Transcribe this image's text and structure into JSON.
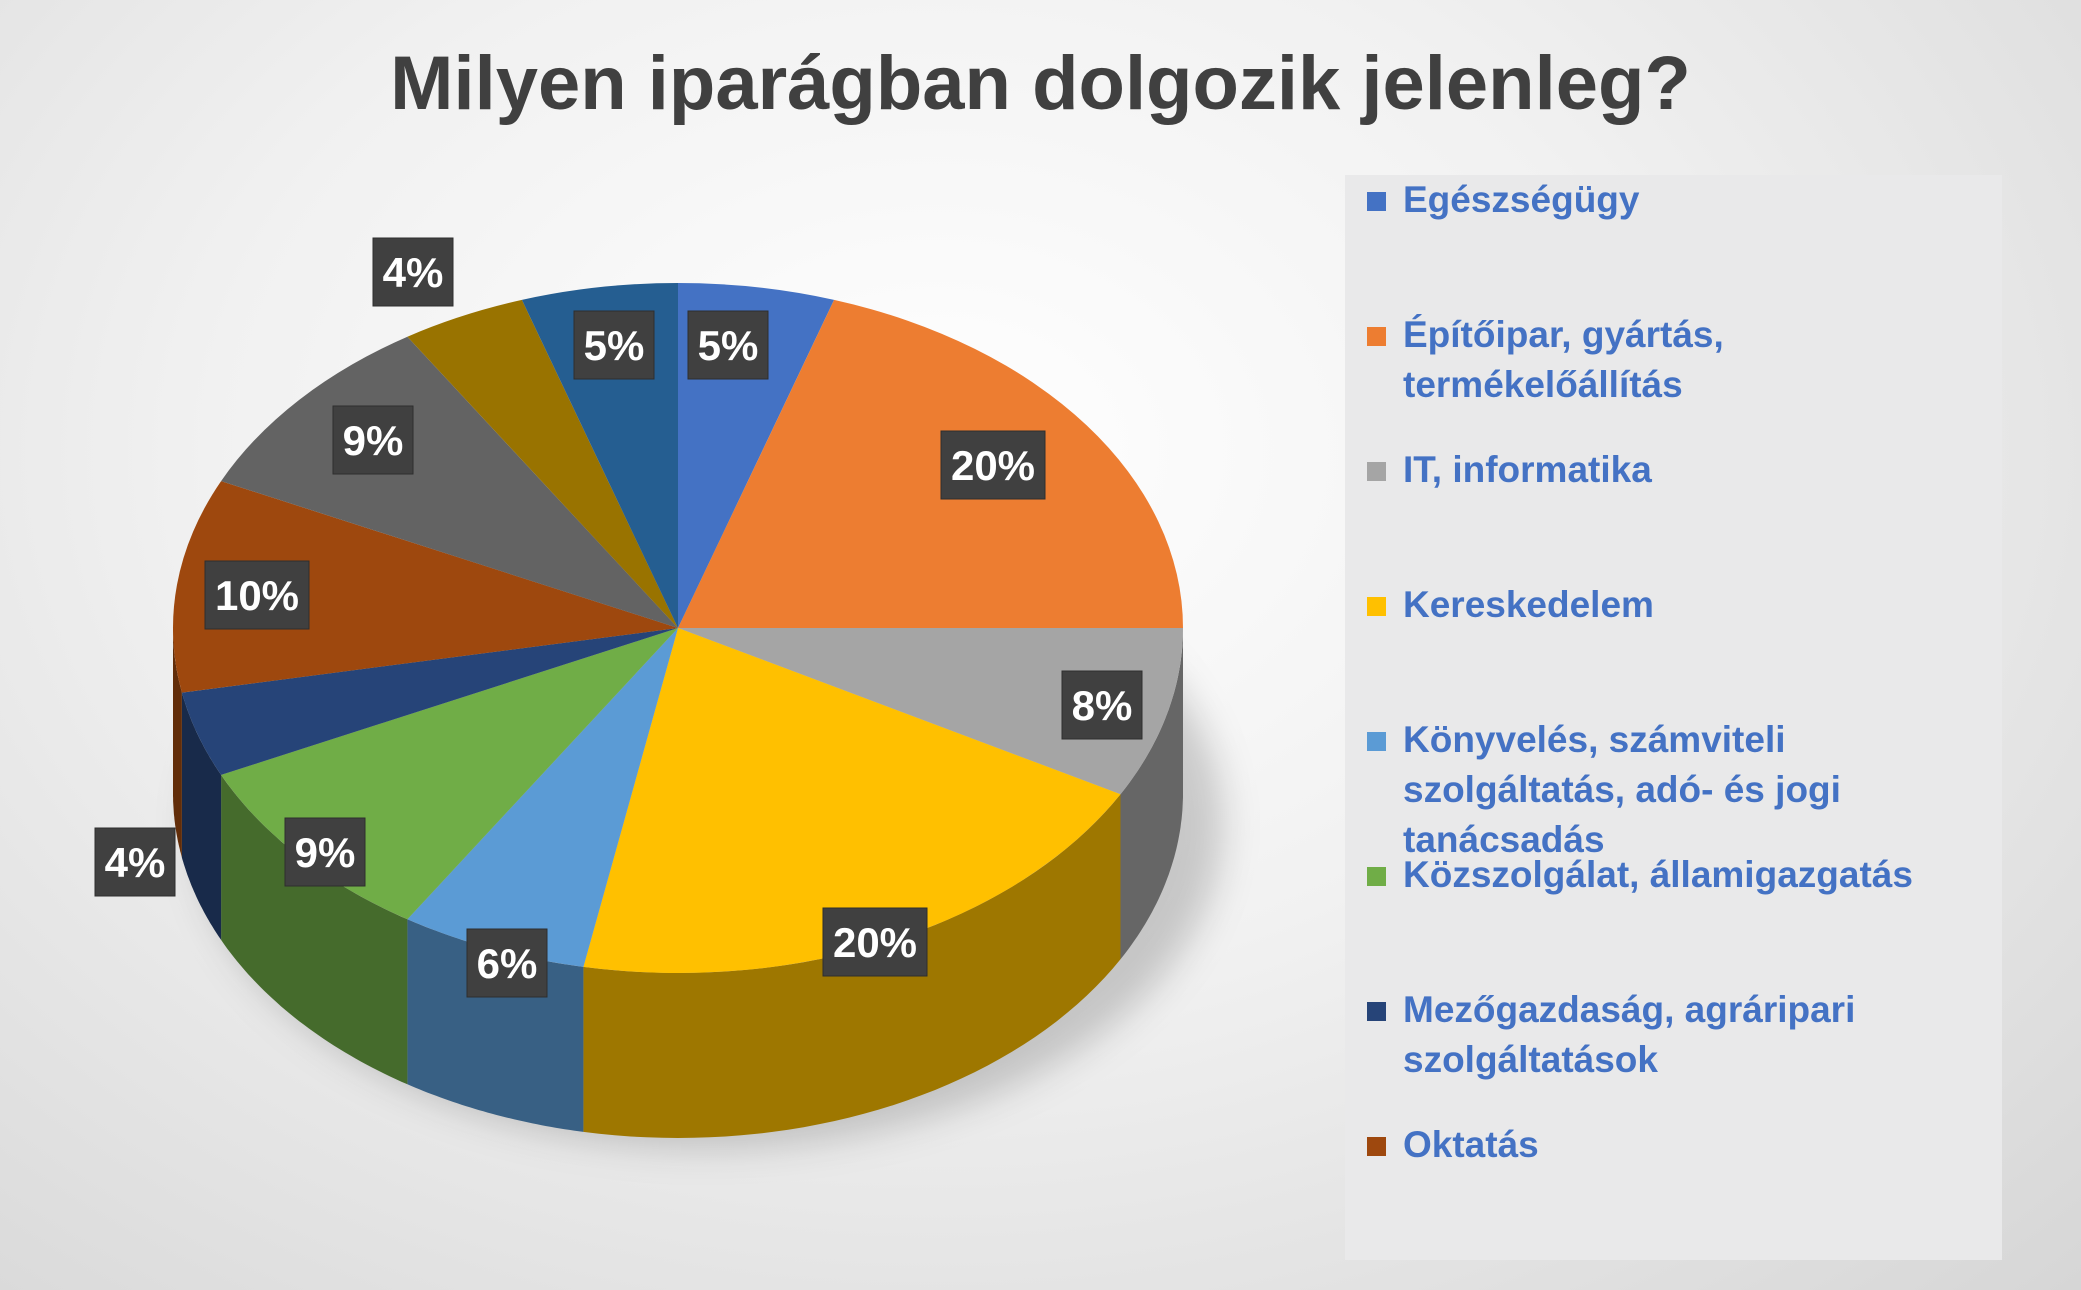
{
  "chart_data": {
    "type": "pie",
    "title": "Milyen iparágban dolgozik jelenleg?",
    "legend_position": "right",
    "style": "3d",
    "slices": [
      {
        "name": "Egészségügy",
        "value": 5,
        "label": "5%",
        "color": "#4472c4"
      },
      {
        "name": "Építőipar, gyártás, termékelőállítás",
        "value": 20,
        "label": "20%",
        "color": "#ed7d31"
      },
      {
        "name": "IT, informatika",
        "value": 8,
        "label": "8%",
        "color": "#a5a5a5"
      },
      {
        "name": "Kereskedelem",
        "value": 20,
        "label": "20%",
        "color": "#ffc000"
      },
      {
        "name": "Könyvelés, számviteli szolgáltatás, adó- és jogi tanácsadás",
        "value": 6,
        "label": "6%",
        "color": "#5b9bd5"
      },
      {
        "name": "Közszolgálat, államigazgatás",
        "value": 9,
        "label": "9%",
        "color": "#70ad47"
      },
      {
        "name": "Mezőgazdaság, agráripari szolgáltatások",
        "value": 4,
        "label": "4%",
        "color": "#264478"
      },
      {
        "name": "Oktatás",
        "value": 10,
        "label": "10%",
        "color": "#9e480e"
      },
      {
        "name": "",
        "value": 9,
        "label": "9%",
        "color": "#636363"
      },
      {
        "name": "",
        "value": 4,
        "label": "4%",
        "color": "#997300"
      },
      {
        "name": "",
        "value": 5,
        "label": "5%",
        "color": "#255e91"
      }
    ]
  }
}
